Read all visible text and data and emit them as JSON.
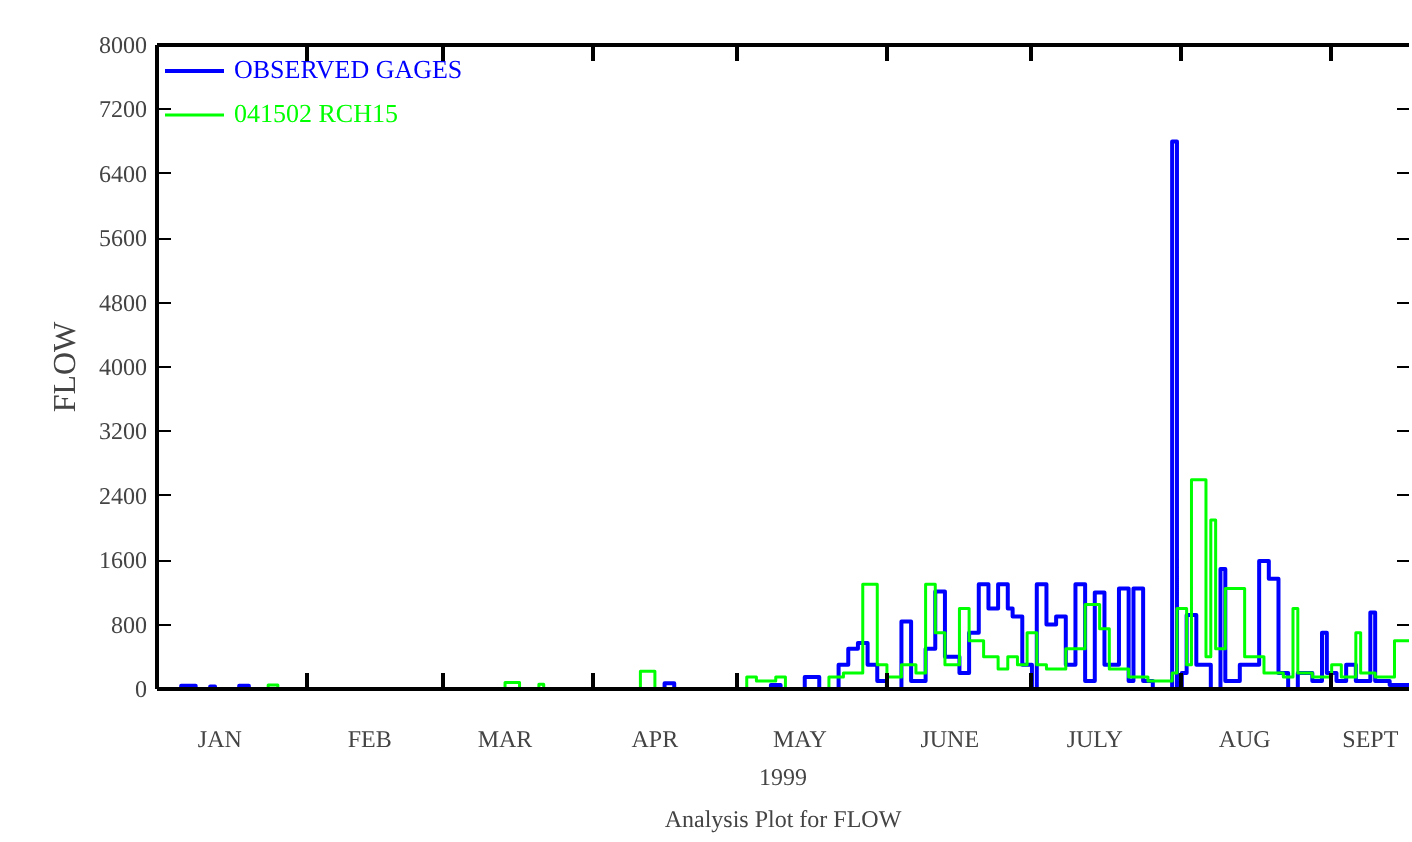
{
  "chart_data": {
    "type": "step",
    "title": "Analysis Plot for FLOW",
    "xlabel": "1999",
    "ylabel": "FLOW",
    "legend": "top left",
    "xlim": [
      "1999-01-01",
      "1999-09-17"
    ],
    "ylim": [
      0,
      8000
    ],
    "yticks": [
      0,
      800,
      1600,
      2400,
      3200,
      4000,
      4800,
      5600,
      6400,
      7200,
      8000
    ],
    "xticks": [
      {
        "value": "1999-01-14",
        "label": "JAN"
      },
      {
        "value": "1999-02-14",
        "label": "FEB"
      },
      {
        "value": "1999-03-14",
        "label": "MAR"
      },
      {
        "value": "1999-04-14",
        "label": "APR"
      },
      {
        "value": "1999-05-14",
        "label": "MAY"
      },
      {
        "value": "1999-06-14",
        "label": "JUNE"
      },
      {
        "value": "1999-07-14",
        "label": "JULY"
      },
      {
        "value": "1999-08-14",
        "label": "AUG"
      },
      {
        "value": "1999-09-09",
        "label": "SEPT"
      },
      {
        "value": "1999-02-01",
        "label": null
      },
      {
        "value": "1999-03-01",
        "label": null
      },
      {
        "value": "1999-04-01",
        "label": null
      },
      {
        "value": "1999-05-01",
        "label": null
      },
      {
        "value": "1999-06-01",
        "label": null
      },
      {
        "value": "1999-07-01",
        "label": null
      },
      {
        "value": "1999-08-01",
        "label": null
      },
      {
        "value": "1999-09-01",
        "label": null
      }
    ],
    "series": [
      {
        "name": "OBSERVED GAGES",
        "color": "#0000ff",
        "x": [
          "1999-01-01",
          "1999-01-06",
          "1999-01-09",
          "1999-01-12",
          "1999-01-13",
          "1999-01-18",
          "1999-01-20",
          "1999-04-16",
          "1999-04-18",
          "1999-05-08",
          "1999-05-10",
          "1999-05-15",
          "1999-05-18",
          "1999-05-22",
          "1999-05-24",
          "1999-05-26",
          "1999-05-28",
          "1999-05-30",
          "1999-06-01",
          "1999-06-04",
          "1999-06-06",
          "1999-06-09",
          "1999-06-11",
          "1999-06-13",
          "1999-06-16",
          "1999-06-18",
          "1999-06-20",
          "1999-06-22",
          "1999-06-24",
          "1999-06-26",
          "1999-06-27",
          "1999-06-29",
          "1999-07-01",
          "1999-07-02",
          "1999-07-04",
          "1999-07-06",
          "1999-07-08",
          "1999-07-10",
          "1999-07-12",
          "1999-07-14",
          "1999-07-16",
          "1999-07-19",
          "1999-07-21",
          "1999-07-22",
          "1999-07-24",
          "1999-07-26",
          "1999-07-30",
          "1999-07-31",
          "1999-08-01",
          "1999-08-02",
          "1999-08-04",
          "1999-08-07",
          "1999-08-09",
          "1999-08-10",
          "1999-08-13",
          "1999-08-17",
          "1999-08-19",
          "1999-08-21",
          "1999-08-23",
          "1999-08-25",
          "1999-08-28",
          "1999-08-30",
          "1999-08-31",
          "1999-09-02",
          "1999-09-04",
          "1999-09-06",
          "1999-09-09",
          "1999-09-10",
          "1999-09-13",
          "1999-09-17"
        ],
        "values": [
          0,
          40,
          0,
          30,
          0,
          40,
          0,
          70,
          0,
          50,
          0,
          150,
          0,
          300,
          500,
          570,
          300,
          100,
          0,
          840,
          100,
          500,
          1210,
          400,
          200,
          700,
          1300,
          1000,
          1300,
          1000,
          900,
          300,
          0,
          1300,
          800,
          900,
          300,
          1300,
          100,
          1200,
          300,
          1250,
          100,
          1250,
          100,
          0,
          6800,
          0,
          200,
          920,
          300,
          0,
          1490,
          100,
          300,
          1590,
          1370,
          200,
          0,
          200,
          100,
          700,
          200,
          100,
          300,
          100,
          950,
          100,
          50,
          50
        ]
      },
      {
        "name": "041502 RCH15",
        "color": "#00ff00",
        "x": [
          "1999-01-01",
          "1999-01-24",
          "1999-01-26",
          "1999-03-14",
          "1999-03-17",
          "1999-03-21",
          "1999-03-22",
          "1999-04-11",
          "1999-04-14",
          "1999-05-03",
          "1999-05-05",
          "1999-05-09",
          "1999-05-11",
          "1999-05-20",
          "1999-05-23",
          "1999-05-27",
          "1999-05-30",
          "1999-06-01",
          "1999-06-04",
          "1999-06-07",
          "1999-06-09",
          "1999-06-11",
          "1999-06-13",
          "1999-06-16",
          "1999-06-18",
          "1999-06-21",
          "1999-06-24",
          "1999-06-26",
          "1999-06-28",
          "1999-06-30",
          "1999-07-02",
          "1999-07-04",
          "1999-07-08",
          "1999-07-12",
          "1999-07-15",
          "1999-07-17",
          "1999-07-21",
          "1999-07-25",
          "1999-07-30",
          "1999-07-31",
          "1999-08-02",
          "1999-08-03",
          "1999-08-06",
          "1999-08-07",
          "1999-08-08",
          "1999-08-10",
          "1999-08-14",
          "1999-08-18",
          "1999-08-22",
          "1999-08-24",
          "1999-08-25",
          "1999-08-28",
          "1999-09-01",
          "1999-09-03",
          "1999-09-06",
          "1999-09-07",
          "1999-09-10",
          "1999-09-14",
          "1999-09-17"
        ],
        "values": [
          0,
          50,
          0,
          80,
          0,
          60,
          0,
          220,
          0,
          150,
          100,
          150,
          0,
          150,
          200,
          1300,
          300,
          150,
          300,
          200,
          1300,
          700,
          300,
          1000,
          600,
          400,
          250,
          400,
          300,
          700,
          300,
          250,
          500,
          1050,
          750,
          250,
          150,
          100,
          200,
          1000,
          300,
          2600,
          400,
          2100,
          500,
          1250,
          400,
          200,
          150,
          1000,
          200,
          150,
          300,
          150,
          700,
          200,
          150,
          600,
          600
        ]
      }
    ]
  }
}
